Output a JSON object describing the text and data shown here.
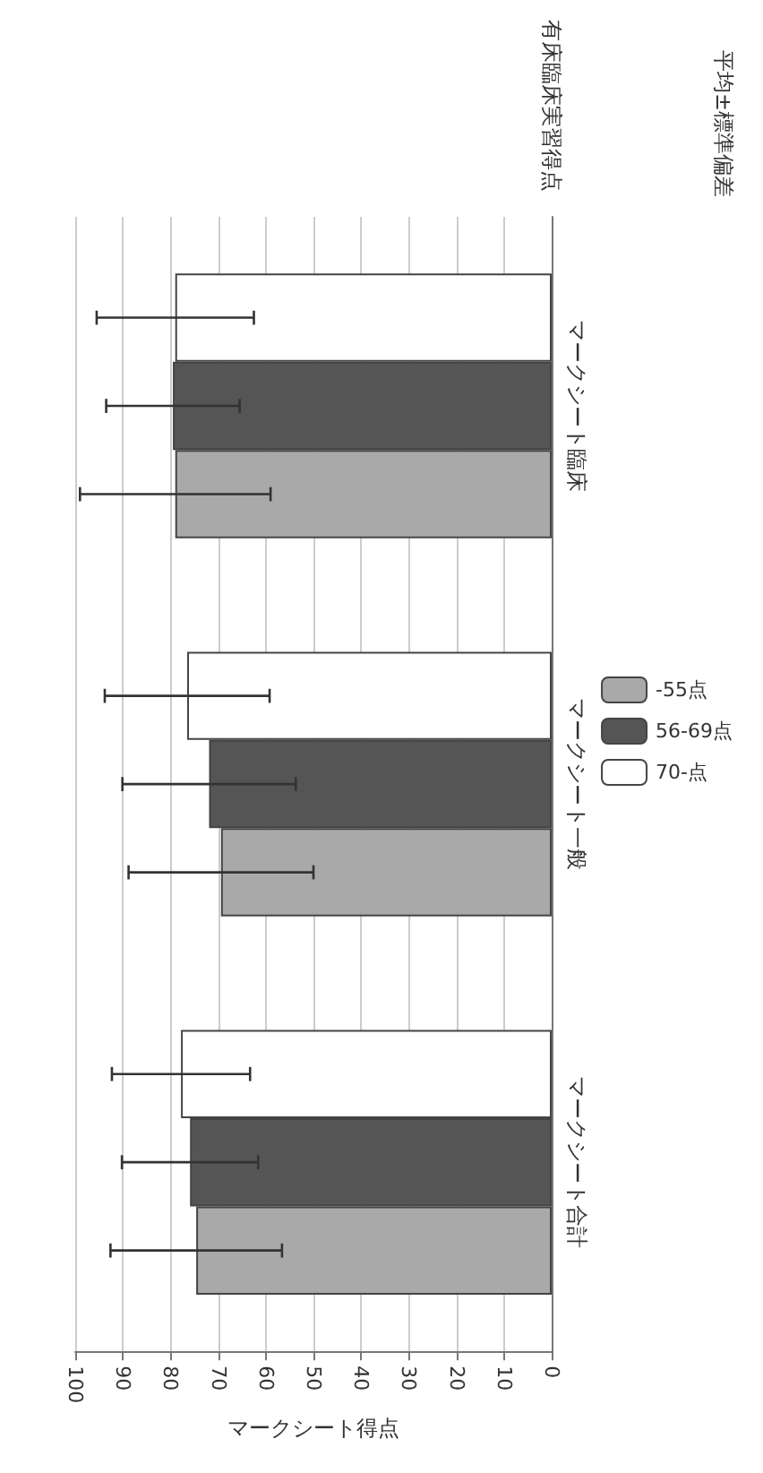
{
  "chart_data": {
    "type": "bar",
    "orientation": "horizontal",
    "xlabel": "マークシート得点",
    "ylabel": "有床臨床実習得点",
    "categories": [
      "マークシート臨床",
      "マークシート一般",
      "マークシート合計"
    ],
    "series": [
      {
        "name": "-55点",
        "color": "#a9a9a9",
        "values": [
          79,
          69.4,
          74.6
        ],
        "errors": [
          20,
          19.4,
          18
        ]
      },
      {
        "name": "56-69点",
        "color": "#555555",
        "values": [
          79.5,
          71.9,
          75.9
        ],
        "errors": [
          14,
          18.2,
          14.3
        ]
      },
      {
        "name": "70-点",
        "color": "#ffffff",
        "values": [
          79,
          76.5,
          77.8
        ],
        "errors": [
          16.5,
          17.3,
          14.5
        ]
      }
    ],
    "xlim": [
      100,
      0
    ],
    "xticks": [
      0,
      10,
      20,
      30,
      40,
      50,
      60,
      70,
      80,
      90,
      100
    ],
    "grid": "x",
    "legend": "right",
    "annotations": [
      "平均±標準偏差"
    ]
  }
}
